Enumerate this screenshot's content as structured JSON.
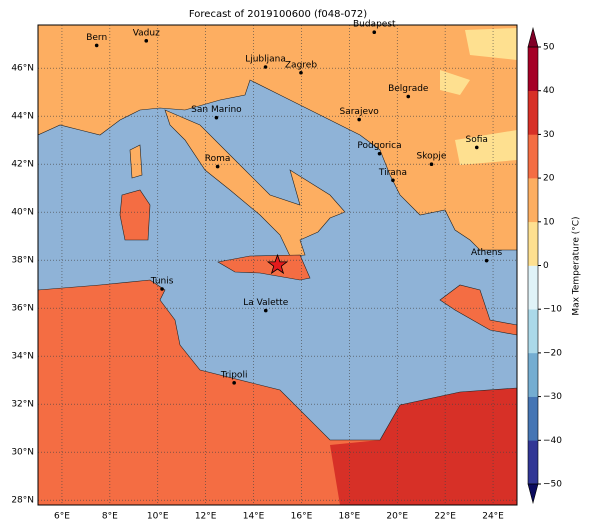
{
  "title": "Forecast of 2019100600 (f048-072)",
  "map": {
    "lonlim": [
      5,
      25
    ],
    "latlim": [
      27.8,
      47.8
    ],
    "lonticks": [
      {
        "value": 6,
        "label": "6°E"
      },
      {
        "value": 8,
        "label": "8°E"
      },
      {
        "value": 10,
        "label": "10°E"
      },
      {
        "value": 12,
        "label": "12°E"
      },
      {
        "value": 14,
        "label": "14°E"
      },
      {
        "value": 16,
        "label": "16°E"
      },
      {
        "value": 18,
        "label": "18°E"
      },
      {
        "value": 20,
        "label": "20°E"
      },
      {
        "value": 22,
        "label": "22°E"
      },
      {
        "value": 24,
        "label": "24°E"
      }
    ],
    "latticks": [
      {
        "value": 28,
        "label": "28°N"
      },
      {
        "value": 30,
        "label": "30°N"
      },
      {
        "value": 32,
        "label": "32°N"
      },
      {
        "value": 34,
        "label": "34°N"
      },
      {
        "value": 36,
        "label": "36°N"
      },
      {
        "value": 38,
        "label": "38°N"
      },
      {
        "value": 40,
        "label": "40°N"
      },
      {
        "value": 42,
        "label": "42°N"
      },
      {
        "value": 44,
        "label": "44°N"
      },
      {
        "value": 46,
        "label": "46°N"
      }
    ],
    "cities": [
      {
        "name": "Bern",
        "lon": 7.45,
        "lat": 46.95
      },
      {
        "name": "Vaduz",
        "lon": 9.52,
        "lat": 47.14
      },
      {
        "name": "Budapest",
        "lon": 19.04,
        "lat": 47.5
      },
      {
        "name": "Ljubljana",
        "lon": 14.5,
        "lat": 46.05
      },
      {
        "name": "Zagreb",
        "lon": 15.98,
        "lat": 45.81
      },
      {
        "name": "San Marino",
        "lon": 12.45,
        "lat": 43.94
      },
      {
        "name": "Belgrade",
        "lon": 20.46,
        "lat": 44.82
      },
      {
        "name": "Sarajevo",
        "lon": 18.41,
        "lat": 43.86
      },
      {
        "name": "Sofia",
        "lon": 23.32,
        "lat": 42.7
      },
      {
        "name": "Podgorica",
        "lon": 19.26,
        "lat": 42.44
      },
      {
        "name": "Skopje",
        "lon": 21.43,
        "lat": 42.0
      },
      {
        "name": "Roma",
        "lon": 12.5,
        "lat": 41.9
      },
      {
        "name": "Tirana",
        "lon": 19.82,
        "lat": 41.33
      },
      {
        "name": "Athens",
        "lon": 23.73,
        "lat": 37.98
      },
      {
        "name": "Tunis",
        "lon": 10.18,
        "lat": 36.8
      },
      {
        "name": "La Valette",
        "lon": 14.51,
        "lat": 35.9
      },
      {
        "name": "Tripoli",
        "lon": 13.19,
        "lat": 32.89
      }
    ],
    "marker": {
      "lon": 15,
      "lat": 37.8,
      "color": "#e41a1c"
    }
  },
  "colorbar": {
    "label": "Max Temperature (°C)",
    "lim": [
      -50,
      50
    ],
    "ticks": [
      {
        "value": -50,
        "label": "−50"
      },
      {
        "value": -40,
        "label": "−40"
      },
      {
        "value": -30,
        "label": "−30"
      },
      {
        "value": -20,
        "label": "−20"
      },
      {
        "value": -10,
        "label": "−10"
      },
      0,
      10,
      20,
      30,
      40,
      50
    ],
    "colors": [
      "#313695",
      "#4575b4",
      "#74add1",
      "#abd9e9",
      "#e0f3f8",
      "#fee090",
      "#fdae61",
      "#f46d43",
      "#d73027",
      "#a50026"
    ],
    "under_color": "#0b0b5e",
    "over_color": "#800026"
  }
}
